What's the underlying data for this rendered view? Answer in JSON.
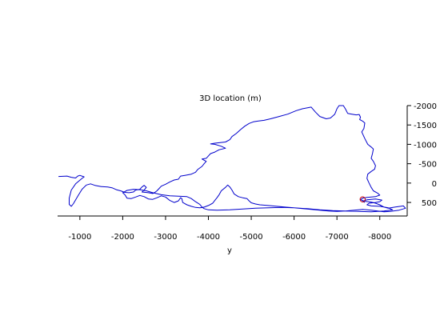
{
  "chart_data": {
    "type": "line",
    "title": "3D location (m)",
    "xlabel": "y",
    "ylabel": "",
    "xlim": [
      -480,
      -8640
    ],
    "ylim": [
      -2000,
      850
    ],
    "x_ticks": [
      {
        "value": -1000,
        "label": "-1000"
      },
      {
        "value": -2000,
        "label": "-2000"
      },
      {
        "value": -3000,
        "label": "-3000"
      },
      {
        "value": -4000,
        "label": "-4000"
      },
      {
        "value": -5000,
        "label": "-5000"
      },
      {
        "value": -6000,
        "label": "-6000"
      },
      {
        "value": -7000,
        "label": "-7000"
      },
      {
        "value": -8000,
        "label": "-8000"
      }
    ],
    "y_ticks": [
      {
        "value": -2000,
        "label": "-2000"
      },
      {
        "value": -1500,
        "label": "-1500"
      },
      {
        "value": -1000,
        "label": "-1000"
      },
      {
        "value": -500,
        "label": "-500"
      },
      {
        "value": 0,
        "label": "0"
      },
      {
        "value": 500,
        "label": "500"
      }
    ],
    "y_axis_position": "right",
    "grid": false,
    "series": [
      {
        "color": "#0000cc",
        "points": [
          [
            -500,
            -170
          ],
          [
            -700,
            -180
          ],
          [
            -800,
            -150
          ],
          [
            -900,
            -130
          ],
          [
            -950,
            -180
          ],
          [
            -1000,
            -200
          ],
          [
            -1100,
            -160
          ],
          [
            -1050,
            -120
          ],
          [
            -900,
            20
          ],
          [
            -800,
            180
          ],
          [
            -750,
            390
          ],
          [
            -750,
            550
          ],
          [
            -800,
            600
          ],
          [
            -850,
            530
          ],
          [
            -950,
            340
          ],
          [
            -1050,
            160
          ],
          [
            -1150,
            50
          ],
          [
            -1250,
            20
          ],
          [
            -1350,
            60
          ],
          [
            -1500,
            90
          ],
          [
            -1650,
            100
          ],
          [
            -1750,
            120
          ],
          [
            -1850,
            170
          ],
          [
            -1950,
            200
          ],
          [
            -2050,
            240
          ],
          [
            -2150,
            250
          ],
          [
            -2250,
            230
          ],
          [
            -2300,
            180
          ],
          [
            -2400,
            160
          ],
          [
            -2450,
            100
          ],
          [
            -2500,
            60
          ],
          [
            -2550,
            110
          ],
          [
            -2500,
            180
          ],
          [
            -2450,
            230
          ],
          [
            -2600,
            250
          ],
          [
            -2700,
            270
          ],
          [
            -2750,
            240
          ],
          [
            -2800,
            200
          ],
          [
            -2850,
            140
          ],
          [
            -2900,
            80
          ],
          [
            -3000,
            30
          ],
          [
            -3100,
            -30
          ],
          [
            -3200,
            -80
          ],
          [
            -3300,
            -100
          ],
          [
            -3350,
            -180
          ],
          [
            -3450,
            -200
          ],
          [
            -3600,
            -230
          ],
          [
            -3700,
            -280
          ],
          [
            -3750,
            -350
          ],
          [
            -3850,
            -430
          ],
          [
            -3900,
            -500
          ],
          [
            -3950,
            -560
          ],
          [
            -3850,
            -620
          ],
          [
            -3950,
            -640
          ],
          [
            -4000,
            -700
          ],
          [
            -4050,
            -760
          ],
          [
            -4150,
            -800
          ],
          [
            -4250,
            -860
          ],
          [
            -4400,
            -900
          ],
          [
            -4300,
            -950
          ],
          [
            -4150,
            -1000
          ],
          [
            -4050,
            -1010
          ],
          [
            -4150,
            -1030
          ],
          [
            -4400,
            -1060
          ],
          [
            -4500,
            -1120
          ],
          [
            -4550,
            -1200
          ],
          [
            -4650,
            -1280
          ],
          [
            -4750,
            -1380
          ],
          [
            -4850,
            -1470
          ],
          [
            -4950,
            -1540
          ],
          [
            -5050,
            -1580
          ],
          [
            -5150,
            -1600
          ],
          [
            -5300,
            -1620
          ],
          [
            -5450,
            -1660
          ],
          [
            -5650,
            -1720
          ],
          [
            -5850,
            -1780
          ],
          [
            -6050,
            -1870
          ],
          [
            -6200,
            -1920
          ],
          [
            -6350,
            -1950
          ],
          [
            -6400,
            -1960
          ],
          [
            -6500,
            -1830
          ],
          [
            -6600,
            -1720
          ],
          [
            -6750,
            -1660
          ],
          [
            -6850,
            -1680
          ],
          [
            -6950,
            -1780
          ],
          [
            -7000,
            -1920
          ],
          [
            -7050,
            -2000
          ],
          [
            -7150,
            -2000
          ],
          [
            -7200,
            -1910
          ],
          [
            -7250,
            -1800
          ],
          [
            -7350,
            -1780
          ],
          [
            -7450,
            -1760
          ],
          [
            -7520,
            -1770
          ],
          [
            -7550,
            -1700
          ],
          [
            -7530,
            -1640
          ],
          [
            -7600,
            -1600
          ],
          [
            -7650,
            -1550
          ],
          [
            -7630,
            -1410
          ],
          [
            -7580,
            -1320
          ],
          [
            -7650,
            -1150
          ],
          [
            -7720,
            -1000
          ],
          [
            -7800,
            -930
          ],
          [
            -7850,
            -880
          ],
          [
            -7830,
            -760
          ],
          [
            -7800,
            -640
          ],
          [
            -7850,
            -560
          ],
          [
            -7900,
            -450
          ],
          [
            -7880,
            -360
          ],
          [
            -7800,
            -300
          ],
          [
            -7720,
            -230
          ],
          [
            -7700,
            -120
          ],
          [
            -7750,
            0
          ],
          [
            -7800,
            110
          ],
          [
            -7850,
            200
          ],
          [
            -7950,
            260
          ],
          [
            -8000,
            310
          ],
          [
            -7900,
            350
          ],
          [
            -7700,
            370
          ],
          [
            -7600,
            390
          ],
          [
            -7550,
            430
          ],
          [
            -7650,
            470
          ],
          [
            -7800,
            490
          ],
          [
            -7900,
            520
          ],
          [
            -8000,
            560
          ],
          [
            -8100,
            620
          ],
          [
            -8200,
            650
          ],
          [
            -8350,
            620
          ],
          [
            -8550,
            590
          ],
          [
            -8600,
            650
          ],
          [
            -8450,
            700
          ],
          [
            -8250,
            730
          ],
          [
            -8100,
            740
          ],
          [
            -7950,
            720
          ],
          [
            -7800,
            700
          ],
          [
            -7600,
            680
          ],
          [
            -7400,
            700
          ],
          [
            -7200,
            720
          ],
          [
            -7000,
            730
          ],
          [
            -6800,
            720
          ],
          [
            -6600,
            700
          ],
          [
            -6400,
            680
          ],
          [
            -6200,
            660
          ],
          [
            -6000,
            640
          ],
          [
            -5800,
            620
          ],
          [
            -5600,
            600
          ],
          [
            -5400,
            580
          ],
          [
            -5200,
            560
          ],
          [
            -5100,
            540
          ],
          [
            -5000,
            510
          ],
          [
            -4950,
            460
          ],
          [
            -4900,
            400
          ],
          [
            -4800,
            380
          ],
          [
            -4700,
            350
          ],
          [
            -4600,
            280
          ],
          [
            -4550,
            180
          ],
          [
            -4500,
            100
          ],
          [
            -4450,
            50
          ],
          [
            -4400,
            110
          ],
          [
            -4300,
            200
          ],
          [
            -4250,
            300
          ],
          [
            -4200,
            380
          ],
          [
            -4150,
            450
          ],
          [
            -4100,
            520
          ],
          [
            -4000,
            580
          ],
          [
            -3900,
            620
          ],
          [
            -3800,
            640
          ],
          [
            -3700,
            630
          ],
          [
            -3600,
            600
          ],
          [
            -3500,
            560
          ],
          [
            -3400,
            500
          ],
          [
            -3380,
            400
          ],
          [
            -3350,
            380
          ],
          [
            -3300,
            460
          ],
          [
            -3200,
            500
          ],
          [
            -3100,
            450
          ],
          [
            -3000,
            360
          ],
          [
            -2900,
            330
          ],
          [
            -2800,
            380
          ],
          [
            -2700,
            420
          ],
          [
            -2600,
            410
          ],
          [
            -2500,
            350
          ],
          [
            -2400,
            320
          ],
          [
            -2300,
            360
          ],
          [
            -2200,
            400
          ],
          [
            -2100,
            390
          ],
          [
            -2050,
            300
          ],
          [
            -2000,
            250
          ],
          [
            -2100,
            190
          ],
          [
            -2250,
            160
          ],
          [
            -2400,
            170
          ],
          [
            -2550,
            200
          ],
          [
            -2700,
            250
          ],
          [
            -2900,
            300
          ],
          [
            -3100,
            330
          ],
          [
            -3300,
            340
          ],
          [
            -3500,
            350
          ],
          [
            -3600,
            400
          ],
          [
            -3700,
            480
          ],
          [
            -3800,
            550
          ],
          [
            -3850,
            620
          ],
          [
            -3900,
            660
          ],
          [
            -4000,
            690
          ],
          [
            -4200,
            700
          ],
          [
            -4500,
            690
          ],
          [
            -4800,
            670
          ],
          [
            -5100,
            650
          ],
          [
            -5400,
            640
          ],
          [
            -5700,
            630
          ],
          [
            -6000,
            640
          ],
          [
            -6300,
            660
          ],
          [
            -6600,
            690
          ],
          [
            -6900,
            710
          ],
          [
            -7200,
            720
          ],
          [
            -7500,
            730
          ],
          [
            -7800,
            740
          ],
          [
            -8100,
            720
          ],
          [
            -8300,
            690
          ],
          [
            -8200,
            640
          ],
          [
            -8000,
            600
          ],
          [
            -7800,
            590
          ],
          [
            -7700,
            560
          ],
          [
            -7750,
            520
          ],
          [
            -7900,
            500
          ],
          [
            -8000,
            480
          ],
          [
            -8050,
            440
          ],
          [
            -7900,
            410
          ],
          [
            -7700,
            430
          ],
          [
            -7600,
            470
          ],
          [
            -7650,
            500
          ]
        ]
      }
    ],
    "marker": {
      "x": -7600,
      "y": 420,
      "shape": "circle",
      "color": "#cc0000"
    }
  }
}
